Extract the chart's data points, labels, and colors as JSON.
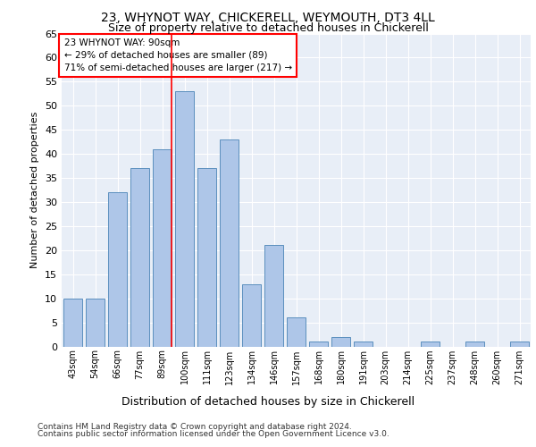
{
  "title1": "23, WHYNOT WAY, CHICKERELL, WEYMOUTH, DT3 4LL",
  "title2": "Size of property relative to detached houses in Chickerell",
  "xlabel": "Distribution of detached houses by size in Chickerell",
  "ylabel": "Number of detached properties",
  "bar_labels": [
    "43sqm",
    "54sqm",
    "66sqm",
    "77sqm",
    "89sqm",
    "100sqm",
    "111sqm",
    "123sqm",
    "134sqm",
    "146sqm",
    "157sqm",
    "168sqm",
    "180sqm",
    "191sqm",
    "203sqm",
    "214sqm",
    "225sqm",
    "237sqm",
    "248sqm",
    "260sqm",
    "271sqm"
  ],
  "bar_values": [
    10,
    10,
    32,
    37,
    41,
    53,
    37,
    43,
    13,
    21,
    6,
    1,
    2,
    1,
    0,
    0,
    1,
    0,
    1,
    0,
    1
  ],
  "bar_color": "#aec6e8",
  "bar_edge_color": "#5b8fbe",
  "property_line_x": 4.42,
  "annotation_title": "23 WHYNOT WAY: 90sqm",
  "annotation_line1": "← 29% of detached houses are smaller (89)",
  "annotation_line2": "71% of semi-detached houses are larger (217) →",
  "ylim": [
    0,
    65
  ],
  "yticks": [
    0,
    5,
    10,
    15,
    20,
    25,
    30,
    35,
    40,
    45,
    50,
    55,
    60,
    65
  ],
  "footer1": "Contains HM Land Registry data © Crown copyright and database right 2024.",
  "footer2": "Contains public sector information licensed under the Open Government Licence v3.0.",
  "plot_bg": "#e8eef7"
}
